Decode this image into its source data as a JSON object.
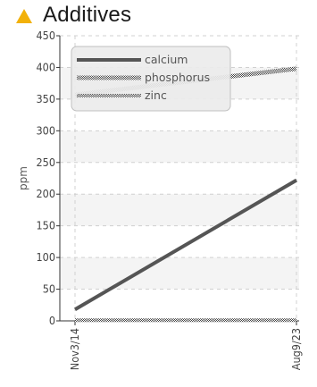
{
  "header": {
    "title": "Additives",
    "icon": "warning-icon",
    "icon_color": "#f2b10a"
  },
  "chart_data": {
    "type": "line",
    "title": "Additives",
    "ylabel": "ppm",
    "xlabel": "",
    "ylim": [
      0,
      450
    ],
    "yticks": [
      "0",
      "50",
      "100",
      "150",
      "200",
      "250",
      "300",
      "350",
      "400",
      "450"
    ],
    "x": [
      "Nov3/14",
      "Aug9/23"
    ],
    "grid": true,
    "legend_position": "top-left",
    "series": [
      {
        "name": "calcium",
        "values": [
          18,
          222
        ],
        "color": "#555555",
        "style": "solid"
      },
      {
        "name": "phosphorus",
        "values": [
          357,
          398
        ],
        "color": "#555555",
        "style": "dotted"
      },
      {
        "name": "zinc",
        "values": [
          1,
          1
        ],
        "color": "#666666",
        "style": "dotted-thin"
      }
    ]
  }
}
